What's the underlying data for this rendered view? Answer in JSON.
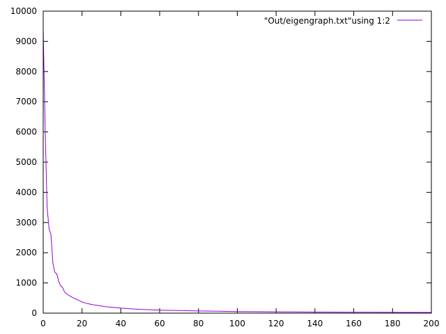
{
  "chart_data": {
    "type": "line",
    "title": "",
    "xlabel": "",
    "ylabel": "",
    "xlim": [
      0,
      200
    ],
    "ylim": [
      0,
      10000
    ],
    "x_ticks": [
      0,
      20,
      40,
      60,
      80,
      100,
      120,
      140,
      160,
      180,
      200
    ],
    "y_ticks": [
      0,
      1000,
      2000,
      3000,
      4000,
      5000,
      6000,
      7000,
      8000,
      9000,
      10000
    ],
    "grid": false,
    "legend_position": "top-right",
    "series": [
      {
        "name": "\"Out/eigengraph.txt\"using 1:2",
        "color": "#9400d3",
        "x": [
          0,
          1,
          2,
          3,
          4,
          5,
          6,
          7,
          8,
          9,
          10,
          11,
          12,
          13,
          14,
          15,
          16,
          17,
          18,
          19,
          20,
          22,
          24,
          26,
          28,
          30,
          32,
          34,
          36,
          38,
          40,
          45,
          50,
          55,
          60,
          70,
          80,
          90,
          100,
          110,
          120,
          130,
          140,
          150,
          160,
          170,
          180,
          190,
          200
        ],
        "values": [
          9400,
          6100,
          3500,
          2800,
          2600,
          1650,
          1350,
          1300,
          1050,
          900,
          850,
          700,
          640,
          600,
          560,
          520,
          490,
          460,
          430,
          400,
          370,
          330,
          300,
          275,
          255,
          235,
          215,
          200,
          190,
          180,
          165,
          145,
          125,
          112,
          100,
          85,
          72,
          62,
          54,
          48,
          43,
          39,
          35,
          32,
          29,
          27,
          25,
          23,
          22
        ]
      }
    ]
  }
}
